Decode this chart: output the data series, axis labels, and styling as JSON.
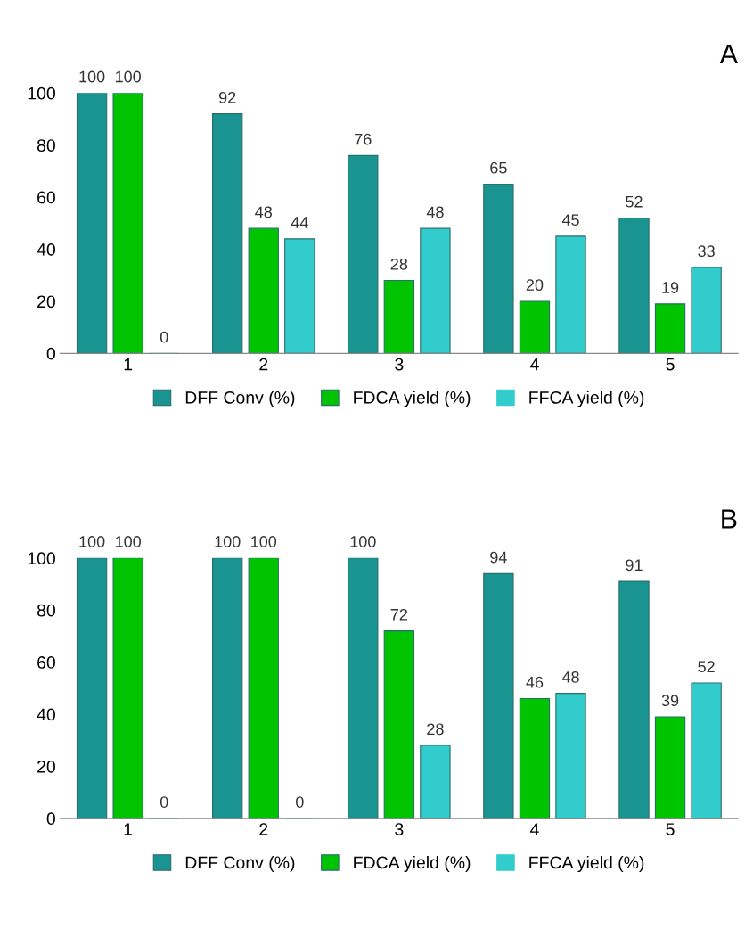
{
  "chart_data": [
    {
      "type": "bar",
      "title": "A",
      "categories": [
        "1",
        "2",
        "3",
        "4",
        "5"
      ],
      "series": [
        {
          "name": "DFF Conv (%)",
          "color": "#1a9490",
          "values": [
            100,
            92,
            76,
            65,
            52
          ]
        },
        {
          "name": "FDCA yield (%)",
          "color": "#00c400",
          "values": [
            100,
            48,
            28,
            20,
            19
          ]
        },
        {
          "name": "FFCA yield (%)",
          "color": "#33cccc",
          "values": [
            0,
            44,
            48,
            45,
            33
          ]
        }
      ],
      "ylim": [
        0,
        100
      ],
      "yticks": [
        0,
        20,
        40,
        60,
        80,
        100
      ],
      "data_labels": true,
      "legend": "bottom",
      "grid": false
    },
    {
      "type": "bar",
      "title": "B",
      "categories": [
        "1",
        "2",
        "3",
        "4",
        "5"
      ],
      "series": [
        {
          "name": "DFF Conv (%)",
          "color": "#1a9490",
          "values": [
            100,
            100,
            100,
            94,
            91
          ]
        },
        {
          "name": "FDCA yield (%)",
          "color": "#00c400",
          "values": [
            100,
            100,
            72,
            46,
            39
          ]
        },
        {
          "name": "FFCA yield (%)",
          "color": "#33cccc",
          "values": [
            0,
            0,
            28,
            48,
            52
          ]
        }
      ],
      "ylim": [
        0,
        100
      ],
      "yticks": [
        0,
        20,
        40,
        60,
        80,
        100
      ],
      "data_labels": true,
      "legend": "bottom",
      "grid": false
    }
  ]
}
